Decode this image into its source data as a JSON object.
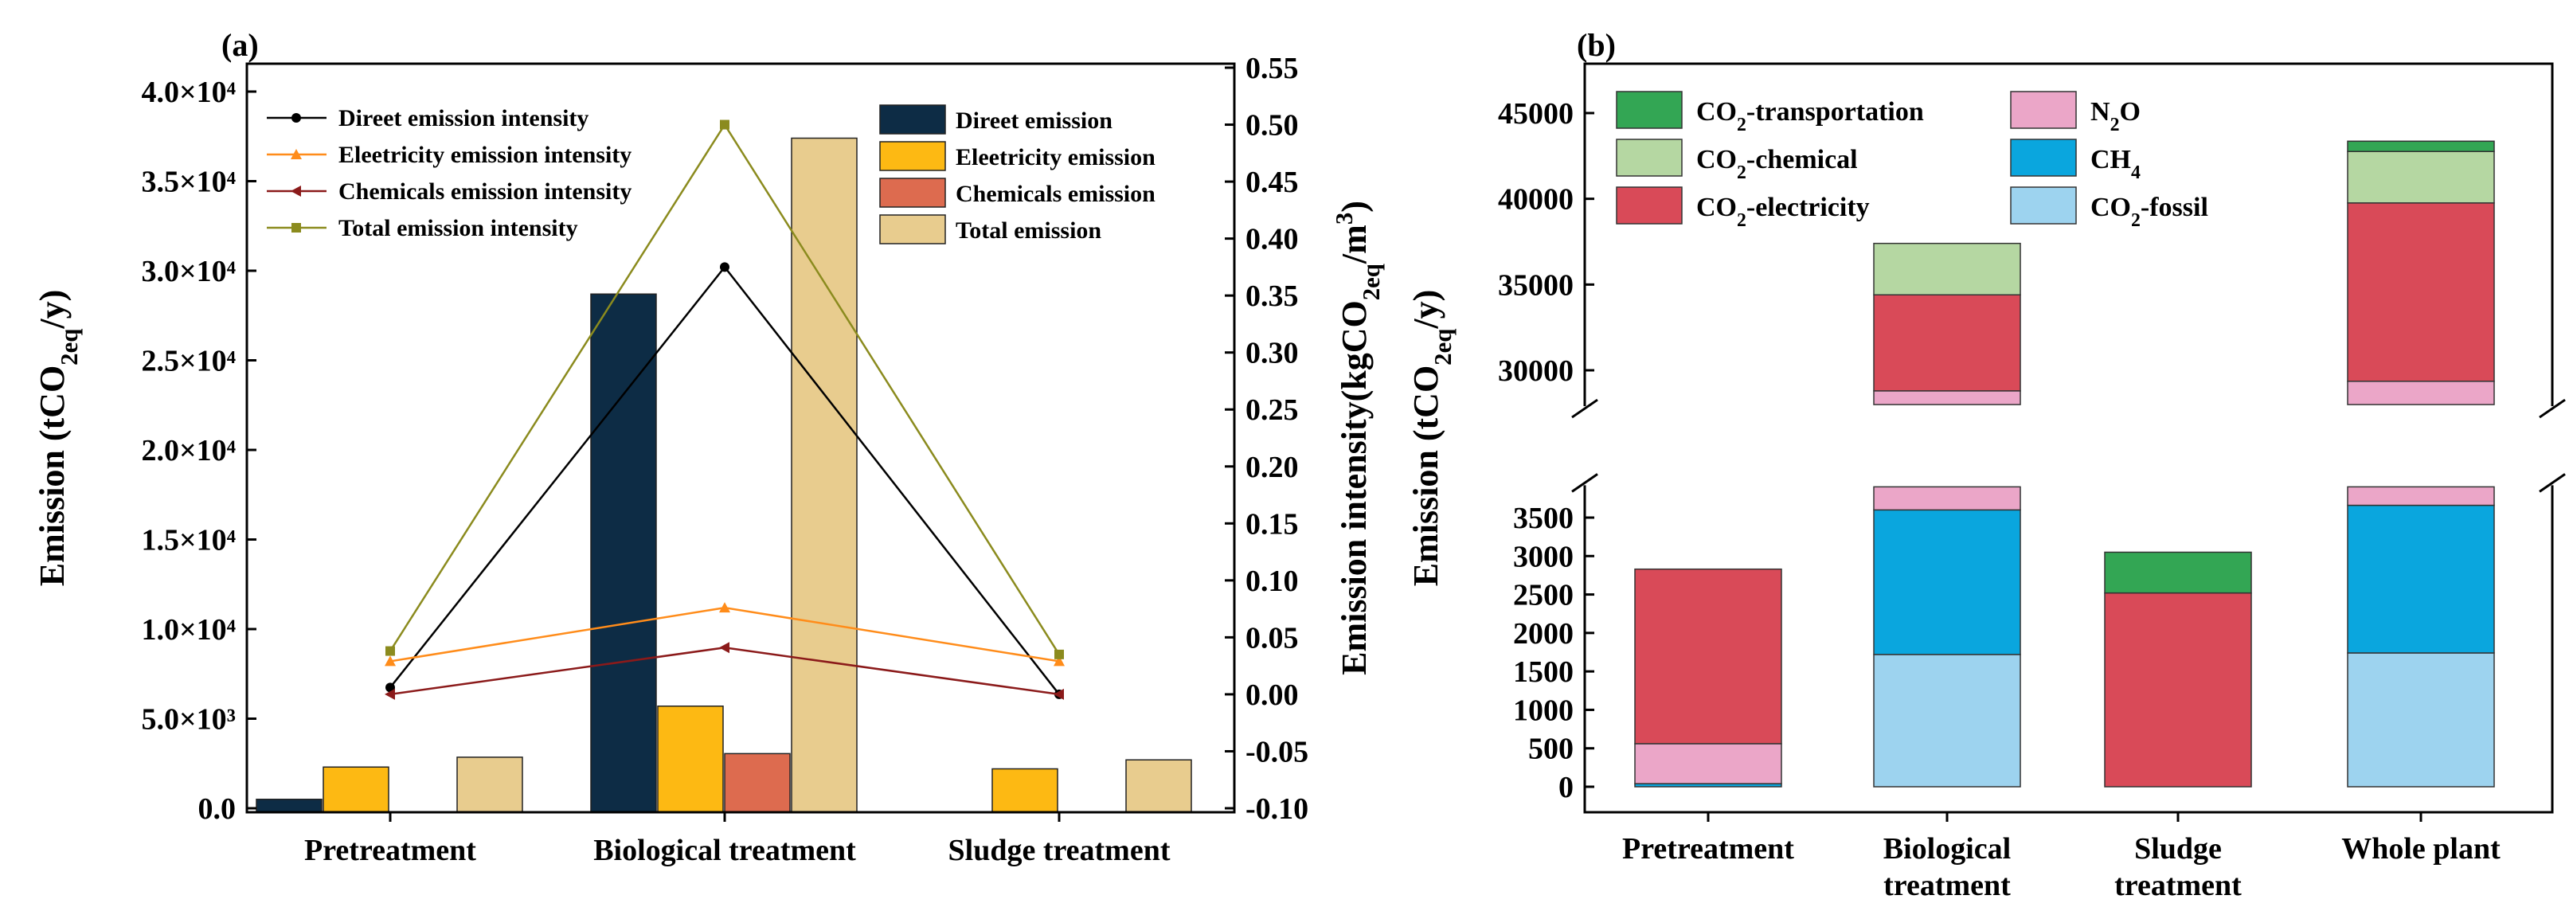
{
  "chart_data": [
    {
      "panel_label": "(a)",
      "type": "bar",
      "categories": [
        "Pretreatment",
        "Biological treatment",
        "Sludge treatment"
      ],
      "ylabel": "Emission (tCO2eq/y)",
      "ylim": [
        0,
        42000
      ],
      "yticks": [
        "0.0",
        "5.0×10³",
        "1.0×10⁴",
        "1.5×10⁴",
        "2.0×10⁴",
        "2.5×10⁴",
        "3.0×10⁴",
        "3.5×10⁴",
        "4.0×10⁴"
      ],
      "y2label": "Emission intensity(kgCO2eq/m³)",
      "y2lim": [
        -0.1,
        0.55
      ],
      "y2ticks": [
        "-0.10",
        "-0.05",
        "0.00",
        "0.05",
        "0.10",
        "0.15",
        "0.20",
        "0.25",
        "0.30",
        "0.35",
        "0.40",
        "0.45",
        "0.50",
        "0.55"
      ],
      "series": [
        {
          "name": "Direet emission",
          "kind": "bar",
          "color": "#0d2c45",
          "values": [
            500,
            28700,
            0
          ]
        },
        {
          "name": "Eleetricity emission",
          "kind": "bar",
          "color": "#fdb913",
          "values": [
            2300,
            5700,
            2200
          ]
        },
        {
          "name": "Chemicals emission",
          "kind": "bar",
          "color": "#dd6b4f",
          "values": [
            0,
            3050,
            0
          ]
        },
        {
          "name": "Total emission",
          "kind": "bar",
          "color": "#e8cc8e",
          "values": [
            2850,
            37400,
            2700
          ]
        }
      ],
      "line_series": [
        {
          "name": "Direet emission intensity",
          "color": "#000000",
          "marker": "circle",
          "values": [
            0.006,
            0.375,
            0.0
          ]
        },
        {
          "name": "Eleetricity emission intensity",
          "color": "#ff8c1a",
          "marker": "triangle-up",
          "values": [
            0.029,
            0.076,
            0.029
          ]
        },
        {
          "name": "Chemicals emission intensity",
          "color": "#8b1a1a",
          "marker": "triangle-left",
          "values": [
            0.0,
            0.041,
            0.0
          ]
        },
        {
          "name": "Total emission intensity",
          "color": "#8b8b1e",
          "marker": "square",
          "values": [
            0.038,
            0.5,
            0.035
          ]
        }
      ],
      "legend_lines_position": "top-left",
      "legend_bars_position": "top-right"
    },
    {
      "panel_label": "(b)",
      "type": "bar",
      "stacked": true,
      "broken_axis": true,
      "categories": [
        "Pretreatment",
        "Biological\ntreatment",
        "Sludge\ntreatment",
        "Whole plant"
      ],
      "ylabel": "Emission (tCO2eq/y)",
      "ylim_lower": [
        0,
        3900
      ],
      "ylim_upper": [
        28000,
        47000
      ],
      "yticks_lower": [
        "0",
        "500",
        "1000",
        "1500",
        "2000",
        "2500",
        "3000",
        "3500"
      ],
      "yticks_upper": [
        "30000",
        "35000",
        "40000",
        "45000"
      ],
      "series": [
        {
          "name": "CO2-fossil",
          "color": "#9dd3ef",
          "values": [
            0,
            1720,
            0,
            1740
          ]
        },
        {
          "name": "CH4",
          "color": "#0aa6de",
          "values": [
            40,
            1880,
            0,
            1920
          ]
        },
        {
          "name": "N2O",
          "color": "#eba6c8",
          "values": [
            520,
            25200,
            0,
            25700
          ]
        },
        {
          "name": "CO2-electricity",
          "color": "#d94a58",
          "values": [
            2270,
            5600,
            2520,
            10400
          ]
        },
        {
          "name": "CO2-chemical",
          "color": "#b5d7a2",
          "values": [
            0,
            3000,
            0,
            3000
          ]
        },
        {
          "name": "CO2-transportation",
          "color": "#33a654",
          "values": [
            0,
            0,
            530,
            600
          ]
        }
      ],
      "legend_position": "top-left"
    }
  ]
}
